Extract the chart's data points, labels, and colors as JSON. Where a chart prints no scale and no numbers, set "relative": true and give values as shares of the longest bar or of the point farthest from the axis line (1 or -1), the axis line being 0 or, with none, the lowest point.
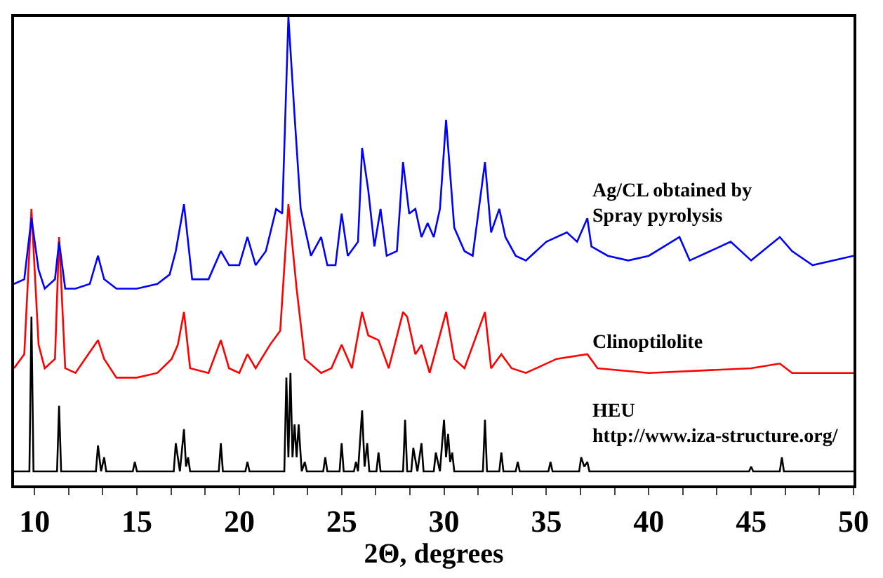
{
  "chart_data": {
    "type": "line",
    "relative": true,
    "xlabel": "2Θ, degrees",
    "xlim": [
      9,
      50
    ],
    "xticks": [
      10,
      {
        "value": 11.67,
        "label": null
      },
      {
        "value": 13.33,
        "label": null
      },
      15,
      {
        "value": 16.67,
        "label": null
      },
      {
        "value": 18.33,
        "label": null
      },
      20,
      {
        "value": 21.67,
        "label": null
      },
      {
        "value": 23.33,
        "label": null
      },
      25,
      {
        "value": 26.67,
        "label": null
      },
      {
        "value": 28.33,
        "label": null
      },
      30,
      {
        "value": 31.67,
        "label": null
      },
      {
        "value": 33.33,
        "label": null
      },
      35,
      {
        "value": 36.67,
        "label": null
      },
      {
        "value": 38.33,
        "label": null
      },
      40,
      {
        "value": 41.67,
        "label": null
      },
      {
        "value": 43.33,
        "label": null
      },
      45,
      {
        "value": 46.67,
        "label": null
      },
      {
        "value": 48.33,
        "label": null
      },
      50
    ],
    "legend": false,
    "marker": "none",
    "line_style": "solid",
    "series": [
      {
        "name": "Ag/CL obtained by\nSpray pyrolysis",
        "color": "#0000ff",
        "x": [
          9.0,
          9.5,
          9.85,
          10.2,
          10.5,
          11.0,
          11.2,
          11.5,
          12,
          12.7,
          13.1,
          13.4,
          14,
          15,
          16,
          16.6,
          16.9,
          17.3,
          17.7,
          18.5,
          19.1,
          19.5,
          20,
          20.4,
          20.8,
          21.3,
          21.8,
          22.1,
          22.4,
          22.7,
          23.0,
          23.5,
          24.0,
          24.3,
          24.7,
          25.0,
          25.3,
          25.8,
          26.0,
          26.3,
          26.6,
          26.9,
          27.2,
          27.7,
          28.0,
          28.3,
          28.6,
          28.9,
          29.2,
          29.5,
          29.8,
          30.1,
          30.5,
          31,
          31.4,
          32.0,
          32.3,
          32.7,
          33,
          33.5,
          34,
          35,
          36,
          36.5,
          37.0,
          37.2,
          38,
          39,
          40,
          41.5,
          42,
          43,
          44,
          45,
          46.4,
          47,
          48,
          50
        ],
        "values": [
          0.43,
          0.44,
          0.57,
          0.46,
          0.42,
          0.44,
          0.52,
          0.42,
          0.42,
          0.43,
          0.49,
          0.44,
          0.42,
          0.42,
          0.43,
          0.45,
          0.5,
          0.6,
          0.44,
          0.44,
          0.5,
          0.47,
          0.47,
          0.53,
          0.47,
          0.5,
          0.59,
          0.58,
          1.0,
          0.79,
          0.59,
          0.49,
          0.53,
          0.47,
          0.47,
          0.58,
          0.49,
          0.52,
          0.72,
          0.63,
          0.51,
          0.59,
          0.49,
          0.5,
          0.69,
          0.58,
          0.59,
          0.53,
          0.56,
          0.53,
          0.59,
          0.78,
          0.55,
          0.5,
          0.49,
          0.69,
          0.54,
          0.59,
          0.53,
          0.49,
          0.48,
          0.52,
          0.54,
          0.52,
          0.57,
          0.51,
          0.49,
          0.48,
          0.49,
          0.53,
          0.48,
          0.5,
          0.52,
          0.48,
          0.53,
          0.5,
          0.47,
          0.49
        ]
      },
      {
        "name": "Clinoptilolite",
        "color": "#ff0000",
        "x": [
          9.0,
          9.5,
          9.85,
          10.2,
          10.5,
          11.0,
          11.2,
          11.5,
          12,
          13.1,
          13.4,
          14,
          15,
          16,
          16.7,
          17.0,
          17.3,
          17.6,
          18.5,
          19.1,
          19.5,
          20,
          20.4,
          20.8,
          21.5,
          22.0,
          22.4,
          22.8,
          23.2,
          24,
          24.5,
          25,
          25.5,
          26.0,
          26.3,
          26.8,
          27.3,
          28.0,
          28.2,
          28.6,
          28.9,
          29.3,
          30.1,
          30.5,
          31,
          32.0,
          32.3,
          32.8,
          33.3,
          34,
          35.5,
          37,
          37.5,
          40,
          45,
          46.4,
          47,
          50
        ],
        "values": [
          0.25,
          0.28,
          0.59,
          0.3,
          0.25,
          0.27,
          0.53,
          0.25,
          0.24,
          0.31,
          0.27,
          0.23,
          0.23,
          0.24,
          0.27,
          0.3,
          0.37,
          0.25,
          0.24,
          0.31,
          0.25,
          0.24,
          0.28,
          0.25,
          0.3,
          0.33,
          0.6,
          0.42,
          0.27,
          0.24,
          0.25,
          0.3,
          0.25,
          0.37,
          0.32,
          0.31,
          0.25,
          0.37,
          0.36,
          0.28,
          0.3,
          0.24,
          0.37,
          0.27,
          0.25,
          0.37,
          0.25,
          0.28,
          0.25,
          0.24,
          0.27,
          0.28,
          0.25,
          0.24,
          0.25,
          0.26,
          0.24,
          0.24
        ]
      },
      {
        "name": "HEU\nhttp://www.iza-structure.org/",
        "color": "#000000",
        "x": [
          9.0,
          9.75,
          9.85,
          9.95,
          11.1,
          11.2,
          11.3,
          13.0,
          13.1,
          13.25,
          13.4,
          13.5,
          14.8,
          14.9,
          15.0,
          16.8,
          16.9,
          17.1,
          17.3,
          17.4,
          17.5,
          17.6,
          19.0,
          19.1,
          19.2,
          20.3,
          20.4,
          20.5,
          22.2,
          22.3,
          22.4,
          22.5,
          22.6,
          22.7,
          22.8,
          22.9,
          23.05,
          23.2,
          23.3,
          24.1,
          24.2,
          24.3,
          24.9,
          25.0,
          25.1,
          25.6,
          25.7,
          25.8,
          26.0,
          26.12,
          26.25,
          26.35,
          26.7,
          26.8,
          26.9,
          28.0,
          28.1,
          28.2,
          28.4,
          28.5,
          28.7,
          28.9,
          29.0,
          29.5,
          29.6,
          29.8,
          30.0,
          30.1,
          30.2,
          30.3,
          30.4,
          30.5,
          31.9,
          32.0,
          32.1,
          32.7,
          32.8,
          32.9,
          33.5,
          33.6,
          33.7,
          35.1,
          35.2,
          35.3,
          36.6,
          36.7,
          36.85,
          37.0,
          37.1,
          44.9,
          45.0,
          45.1,
          46.4,
          46.5,
          46.6,
          50
        ],
        "values": [
          0.03,
          0.03,
          0.36,
          0.03,
          0.03,
          0.17,
          0.03,
          0.03,
          0.085,
          0.03,
          0.06,
          0.03,
          0.03,
          0.05,
          0.03,
          0.03,
          0.09,
          0.03,
          0.12,
          0.04,
          0.06,
          0.03,
          0.03,
          0.09,
          0.03,
          0.03,
          0.05,
          0.03,
          0.03,
          0.23,
          0.06,
          0.24,
          0.06,
          0.13,
          0.06,
          0.13,
          0.03,
          0.05,
          0.03,
          0.03,
          0.06,
          0.03,
          0.03,
          0.09,
          0.03,
          0.03,
          0.05,
          0.03,
          0.16,
          0.04,
          0.09,
          0.03,
          0.03,
          0.07,
          0.03,
          0.03,
          0.14,
          0.03,
          0.03,
          0.08,
          0.03,
          0.09,
          0.03,
          0.03,
          0.07,
          0.03,
          0.14,
          0.06,
          0.11,
          0.05,
          0.07,
          0.03,
          0.03,
          0.14,
          0.03,
          0.03,
          0.07,
          0.03,
          0.03,
          0.05,
          0.03,
          0.03,
          0.05,
          0.03,
          0.03,
          0.06,
          0.04,
          0.05,
          0.03,
          0.03,
          0.04,
          0.03,
          0.03,
          0.06,
          0.03,
          0.03
        ]
      }
    ]
  }
}
